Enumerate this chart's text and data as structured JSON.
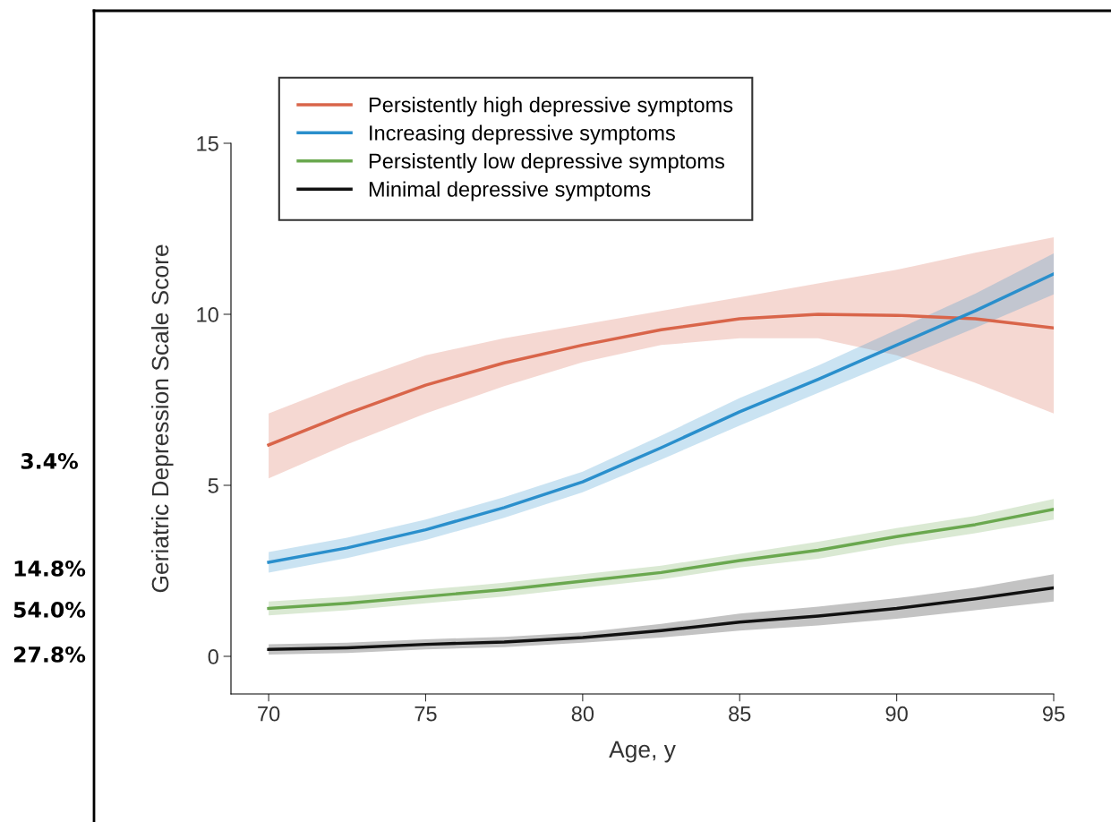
{
  "chart_data": {
    "type": "line",
    "xlabel": "Age, y",
    "ylabel": "Geriatric Depression Scale Score",
    "x": [
      70,
      72.5,
      75,
      77.5,
      80,
      82.5,
      85,
      87.5,
      90,
      92.5,
      95
    ],
    "xlim": [
      68.8,
      95
    ],
    "xticks": [
      70,
      75,
      80,
      85,
      90,
      95
    ],
    "ylim": [
      -1.1,
      15
    ],
    "yticks": [
      0,
      5,
      10,
      15
    ],
    "grid": false,
    "legend": "top left",
    "marker": "none",
    "line_style": "solid",
    "series": [
      {
        "name": "Persistently high depressive symptoms",
        "color": "#d9654a",
        "values": [
          6.18,
          7.1,
          7.93,
          8.58,
          9.1,
          9.55,
          9.87,
          10.0,
          9.97,
          9.87,
          9.6
        ],
        "lower": [
          5.2,
          6.2,
          7.1,
          7.9,
          8.6,
          9.1,
          9.3,
          9.3,
          8.8,
          8.0,
          7.1
        ],
        "upper": [
          7.1,
          8.0,
          8.8,
          9.3,
          9.7,
          10.1,
          10.5,
          10.9,
          11.3,
          11.8,
          12.25
        ]
      },
      {
        "name": "Increasing depressive symptoms",
        "color": "#2a8fcc",
        "values": [
          2.75,
          3.17,
          3.7,
          4.35,
          5.1,
          6.1,
          7.15,
          8.1,
          9.1,
          10.1,
          11.18
        ],
        "lower": [
          2.45,
          2.87,
          3.4,
          4.05,
          4.8,
          5.75,
          6.75,
          7.7,
          8.65,
          9.6,
          10.58
        ],
        "upper": [
          3.05,
          3.47,
          4.0,
          4.65,
          5.4,
          6.45,
          7.55,
          8.5,
          9.55,
          10.6,
          11.78
        ]
      },
      {
        "name": "Persistently low depressive symptoms",
        "color": "#6aa84f",
        "values": [
          1.4,
          1.55,
          1.75,
          1.95,
          2.2,
          2.45,
          2.8,
          3.1,
          3.5,
          3.85,
          4.3
        ],
        "lower": [
          1.2,
          1.35,
          1.55,
          1.75,
          2.0,
          2.25,
          2.6,
          2.85,
          3.25,
          3.6,
          4.0
        ],
        "upper": [
          1.6,
          1.75,
          1.95,
          2.15,
          2.4,
          2.65,
          3.0,
          3.35,
          3.75,
          4.1,
          4.6
        ]
      },
      {
        "name": "Minimal depressive symptoms",
        "color": "#111111",
        "values": [
          0.2,
          0.25,
          0.35,
          0.42,
          0.55,
          0.75,
          1.0,
          1.18,
          1.4,
          1.68,
          2.0
        ],
        "lower": [
          0.05,
          0.1,
          0.2,
          0.27,
          0.4,
          0.55,
          0.75,
          0.9,
          1.1,
          1.35,
          1.6
        ],
        "upper": [
          0.35,
          0.4,
          0.5,
          0.57,
          0.7,
          0.95,
          1.25,
          1.45,
          1.7,
          2.0,
          2.4
        ]
      }
    ],
    "annotations": [
      "3.4%",
      "14.8%",
      "54.0%",
      "27.8%"
    ]
  }
}
